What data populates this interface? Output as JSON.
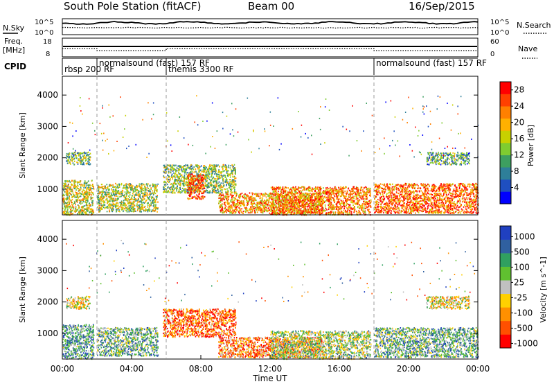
{
  "header": {
    "station": "South Pole Station (fitACF)",
    "beam": "Beam 00",
    "date": "16/Sep/2015"
  },
  "noise_panel": {
    "left_label": "N.Sky",
    "right_label": "N.Search",
    "left_tick_top": "10^5",
    "left_tick_bottom": "10^0",
    "right_tick_top": "10^5",
    "right_tick_bottom": "10^0"
  },
  "freq_panel": {
    "left_label_line1": "Freq.",
    "left_label_line2": "[MHz]",
    "right_label": "Nave",
    "left_tick_top": "18",
    "left_tick_bottom": "8",
    "right_tick_top": "60",
    "right_tick_bottom": "0"
  },
  "cpid_panel": {
    "label": "CPID",
    "segments": [
      {
        "label": "rbsp 200 RF",
        "start_hour": 0.0,
        "end_hour": 2.0,
        "row": 2
      },
      {
        "label": "normalsound (fast) 157 RF",
        "start_hour": 2.0,
        "end_hour": 6.0,
        "row": 1
      },
      {
        "label": "themis 3300 RF",
        "start_hour": 6.0,
        "end_hour": 18.0,
        "row": 2
      },
      {
        "label": "normalsound (fast) 157 RF",
        "start_hour": 18.0,
        "end_hour": 24.0,
        "row": 1
      }
    ]
  },
  "chart_data": [
    {
      "type": "heatmap",
      "quantity": "Power",
      "ylabel": "Slant Range [km]",
      "xlim": [
        0,
        24
      ],
      "ylim": [
        180,
        4600
      ],
      "yticks": [
        1000,
        2000,
        3000,
        4000
      ],
      "colorbar_label": "Power [dB]",
      "colorbar_ticks": [
        "4",
        "8",
        "12",
        "16",
        "20",
        "24",
        "28"
      ],
      "colorbar_range": [
        0,
        30
      ],
      "colors": [
        "#0000ff",
        "#1f4fc0",
        "#2e7f99",
        "#3d9f60",
        "#7fcc30",
        "#c8d000",
        "#ffb000",
        "#ff8000",
        "#ff4000",
        "#ff0000"
      ],
      "scatter_regions": [
        {
          "t0": 0.0,
          "t1": 1.8,
          "r0": 200,
          "r1": 1300,
          "level": 0.55
        },
        {
          "t0": 0.2,
          "t1": 1.6,
          "r0": 1800,
          "r1": 2200,
          "level": 0.4
        },
        {
          "t0": 2.0,
          "t1": 5.5,
          "r0": 300,
          "r1": 1200,
          "level": 0.5
        },
        {
          "t0": 5.8,
          "t1": 10.0,
          "r0": 900,
          "r1": 1800,
          "level": 0.45
        },
        {
          "t0": 7.2,
          "t1": 8.2,
          "r0": 700,
          "r1": 1500,
          "level": 0.85
        },
        {
          "t0": 9.0,
          "t1": 15.0,
          "r0": 250,
          "r1": 900,
          "level": 0.7
        },
        {
          "t0": 12.0,
          "t1": 17.8,
          "r0": 200,
          "r1": 1100,
          "level": 0.75
        },
        {
          "t0": 18.0,
          "t1": 24.0,
          "r0": 250,
          "r1": 1200,
          "level": 0.8
        },
        {
          "t0": 21.0,
          "t1": 23.5,
          "r0": 1800,
          "r1": 2200,
          "level": 0.35
        }
      ]
    },
    {
      "type": "heatmap",
      "quantity": "Velocity",
      "ylabel": "Slant Range [km]",
      "xlabel": "Time UT",
      "xlim": [
        0,
        24
      ],
      "ylim": [
        180,
        4600
      ],
      "yticks": [
        1000,
        2000,
        3000,
        4000
      ],
      "xticks": [
        "00:00",
        "04:00",
        "08:00",
        "12:00",
        "16:00",
        "20:00",
        "00:00"
      ],
      "xtick_hours": [
        0,
        4,
        8,
        12,
        16,
        20,
        24
      ],
      "colorbar_label": "Velocity [m s^-1]",
      "colorbar_ticks": [
        "1000",
        "500",
        "100",
        "25",
        "-25",
        "-100",
        "-500",
        "-1000"
      ],
      "colors": [
        "#ff0000",
        "#ff5000",
        "#ff9000",
        "#ffd000",
        "#c0c0c0",
        "#60c030",
        "#30a060",
        "#3060a0",
        "#2040c0"
      ],
      "scatter_regions": [
        {
          "t0": 0.0,
          "t1": 1.8,
          "r0": 200,
          "r1": 1300,
          "level": 0.7
        },
        {
          "t0": 0.2,
          "t1": 1.6,
          "r0": 1800,
          "r1": 2200,
          "level": 0.45
        },
        {
          "t0": 2.0,
          "t1": 5.5,
          "r0": 300,
          "r1": 1200,
          "level": 0.65
        },
        {
          "t0": 5.8,
          "t1": 10.0,
          "r0": 900,
          "r1": 1800,
          "level": 0.2
        },
        {
          "t0": 9.0,
          "t1": 15.0,
          "r0": 250,
          "r1": 900,
          "level": 0.25
        },
        {
          "t0": 12.0,
          "t1": 17.8,
          "r0": 200,
          "r1": 1100,
          "level": 0.55
        },
        {
          "t0": 18.0,
          "t1": 24.0,
          "r0": 250,
          "r1": 1200,
          "level": 0.65
        },
        {
          "t0": 21.0,
          "t1": 23.5,
          "r0": 1800,
          "r1": 2200,
          "level": 0.45
        }
      ]
    }
  ]
}
